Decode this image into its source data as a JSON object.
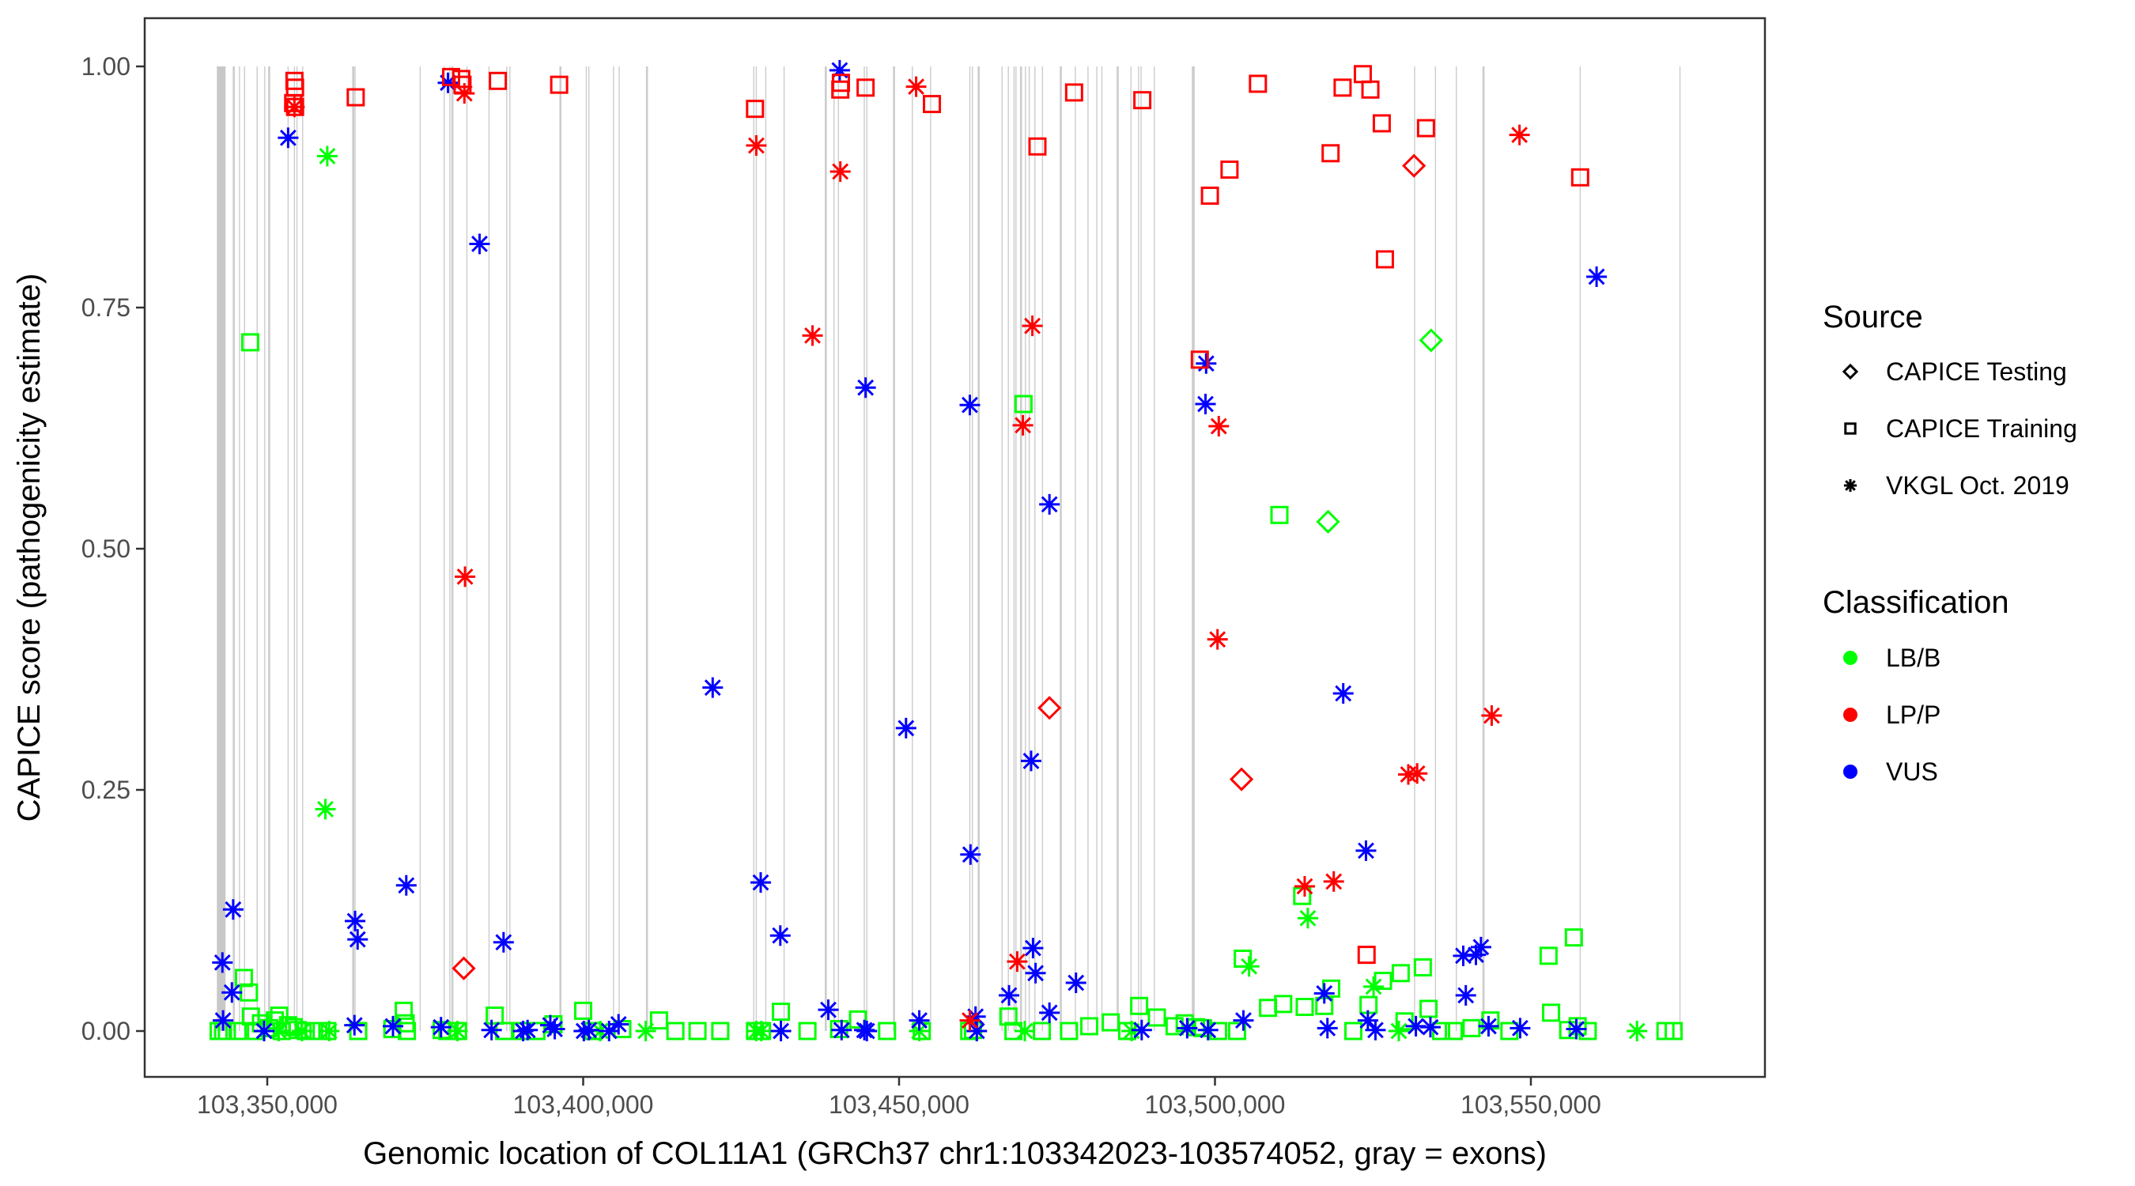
{
  "chart_data": {
    "type": "scatter",
    "title": "",
    "xlabel": "Genomic location of COL11A1 (GRCh37 chr1:103342023-103574052, gray = exons)",
    "ylabel": "CAPICE score (pathogenicity estimate)",
    "xlim": [
      103338500,
      103601500
    ],
    "ylim": [
      -0.048,
      1.048
    ],
    "xticks": [
      103350000,
      103400000,
      103450000,
      103500000,
      103550000
    ],
    "xtick_labels": [
      "103,350,000",
      "103,400,000",
      "103,450,000",
      "103,500,000",
      "103,550,000"
    ],
    "yticks": [
      0,
      0.25,
      0.5,
      0.75,
      1.0
    ],
    "ytick_labels": [
      "0.00",
      "0.25",
      "0.50",
      "0.75",
      "1.00"
    ],
    "grid": false,
    "legend_position": "right",
    "legend": {
      "source_title": "Source",
      "source_entries": [
        {
          "label": "CAPICE Testing",
          "shape": "diamond"
        },
        {
          "label": "CAPICE Training",
          "shape": "square"
        },
        {
          "label": "VKGL Oct. 2019",
          "shape": "asterisk"
        }
      ],
      "class_title": "Classification",
      "class_entries": [
        {
          "label": "LB/B",
          "color": "#00ff00"
        },
        {
          "label": "LP/P",
          "color": "#ff0000"
        },
        {
          "label": "VUS",
          "color": "#0000ff"
        }
      ]
    },
    "exon_bands": [
      [
        103342023,
        103343400
      ]
    ],
    "exons": [
      103344700,
      103345600,
      103346400,
      103348400,
      103349600,
      103350300,
      103353300,
      103354300,
      103354700,
      103355600,
      103363600,
      103363900,
      103374200,
      103378000,
      103378900,
      103379300,
      103381600,
      103385100,
      103387900,
      103388400,
      103396400,
      103400500,
      103400900,
      103404800,
      103405700,
      103410100,
      103427000,
      103427400,
      103428900,
      103431800,
      103438400,
      103439700,
      103440400,
      103444500,
      103444900,
      103449200,
      103452100,
      103455000,
      103461200,
      103461600,
      103462600,
      103466300,
      103467300,
      103468200,
      103468500,
      103469300,
      103470000,
      103470600,
      103471500,
      103472700,
      103475600,
      103477900,
      103479900,
      103481300,
      103482100,
      103484600,
      103486700,
      103487900,
      103488300,
      103490400,
      103496500,
      103496700,
      103531600,
      103534900,
      103538200,
      103542500,
      103557800,
      103573600
    ],
    "series": [
      {
        "name": "LP/P - CAPICE Training",
        "classification": "LP/P",
        "source": "CAPICE Training",
        "points": [
          [
            103354300,
            0.985
          ],
          [
            103354400,
            0.978
          ],
          [
            103354100,
            0.962
          ],
          [
            103354400,
            0.958
          ],
          [
            103364000,
            0.968
          ],
          [
            103379100,
            0.989
          ],
          [
            103380700,
            0.987
          ],
          [
            103380900,
            0.981
          ],
          [
            103386500,
            0.985
          ],
          [
            103396200,
            0.981
          ],
          [
            103427200,
            0.956
          ],
          [
            103440700,
            0.976
          ],
          [
            103440800,
            0.983
          ],
          [
            103444700,
            0.978
          ],
          [
            103455200,
            0.961
          ],
          [
            103471900,
            0.917
          ],
          [
            103477700,
            0.973
          ],
          [
            103488500,
            0.965
          ],
          [
            103497600,
            0.696
          ],
          [
            103499200,
            0.866
          ],
          [
            103502300,
            0.893
          ],
          [
            103506800,
            0.982
          ],
          [
            103518300,
            0.91
          ],
          [
            103520200,
            0.978
          ],
          [
            103523400,
            0.992
          ],
          [
            103524600,
            0.976
          ],
          [
            103526400,
            0.941
          ],
          [
            103526900,
            0.8
          ],
          [
            103533400,
            0.936
          ],
          [
            103557800,
            0.885
          ],
          [
            103524000,
            0.079
          ]
        ]
      },
      {
        "name": "LP/P - VKGL Oct. 2019",
        "classification": "LP/P",
        "source": "VKGL Oct. 2019",
        "points": [
          [
            103354300,
            0.958
          ],
          [
            103381200,
            0.972
          ],
          [
            103381300,
            0.471
          ],
          [
            103427400,
            0.918
          ],
          [
            103436300,
            0.721
          ],
          [
            103440700,
            0.891
          ],
          [
            103452700,
            0.979
          ],
          [
            103461200,
            0.011
          ],
          [
            103469600,
            0.628
          ],
          [
            103471100,
            0.731
          ],
          [
            103500600,
            0.627
          ],
          [
            103500400,
            0.406
          ],
          [
            103468700,
            0.072
          ],
          [
            103514200,
            0.15
          ],
          [
            103518800,
            0.155
          ],
          [
            103530600,
            0.266
          ],
          [
            103532000,
            0.267
          ],
          [
            103543800,
            0.327
          ],
          [
            103548200,
            0.929
          ]
        ]
      },
      {
        "name": "LP/P - CAPICE Testing",
        "classification": "LP/P",
        "source": "CAPICE Testing",
        "points": [
          [
            103381100,
            0.065
          ],
          [
            103473800,
            0.335
          ],
          [
            103504200,
            0.261
          ],
          [
            103531500,
            0.897
          ]
        ]
      },
      {
        "name": "VUS - VKGL Oct. 2019",
        "classification": "VUS",
        "source": "VKGL Oct. 2019",
        "points": [
          [
            103342900,
            0.071
          ],
          [
            103343000,
            0.011
          ],
          [
            103344600,
            0.126
          ],
          [
            103344400,
            0.04
          ],
          [
            103349500,
            0.0
          ],
          [
            103353300,
            0.926
          ],
          [
            103363900,
            0.114
          ],
          [
            103364300,
            0.095
          ],
          [
            103363800,
            0.006
          ],
          [
            103369900,
            0.005
          ],
          [
            103372000,
            0.151
          ],
          [
            103378600,
            0.983
          ],
          [
            103377500,
            0.004
          ],
          [
            103383600,
            0.816
          ],
          [
            103387400,
            0.092
          ],
          [
            103385500,
            0.001
          ],
          [
            103390500,
            0.0
          ],
          [
            103391200,
            0.001
          ],
          [
            103394800,
            0.006
          ],
          [
            103395500,
            0.002
          ],
          [
            103400100,
            0.0
          ],
          [
            103400900,
            0.001
          ],
          [
            103404100,
            0.0
          ],
          [
            103405600,
            0.007
          ],
          [
            103420500,
            0.356
          ],
          [
            103428100,
            0.154
          ],
          [
            103431200,
            0.099
          ],
          [
            103431300,
            0.0
          ],
          [
            103438800,
            0.022
          ],
          [
            103440600,
            0.996
          ],
          [
            103440900,
            0.001
          ],
          [
            103444700,
            0.667
          ],
          [
            103444500,
            0.001
          ],
          [
            103444900,
            0.0
          ],
          [
            103451100,
            0.314
          ],
          [
            103453200,
            0.011
          ],
          [
            103461200,
            0.649
          ],
          [
            103461300,
            0.183
          ],
          [
            103462100,
            0.015
          ],
          [
            103462300,
            0.0
          ],
          [
            103467400,
            0.037
          ],
          [
            103470900,
            0.28
          ],
          [
            103471200,
            0.086
          ],
          [
            103471600,
            0.06
          ],
          [
            103473800,
            0.546
          ],
          [
            103473800,
            0.019
          ],
          [
            103478000,
            0.05
          ],
          [
            103488400,
            0.001
          ],
          [
            103498600,
            0.692
          ],
          [
            103498500,
            0.65
          ],
          [
            103495600,
            0.003
          ],
          [
            103498900,
            0.001
          ],
          [
            103504500,
            0.011
          ],
          [
            103517300,
            0.039
          ],
          [
            103517800,
            0.003
          ],
          [
            103520300,
            0.35
          ],
          [
            103523900,
            0.187
          ],
          [
            103524200,
            0.011
          ],
          [
            103525400,
            0.001
          ],
          [
            103531800,
            0.005
          ],
          [
            103534100,
            0.004
          ],
          [
            103539300,
            0.078
          ],
          [
            103539700,
            0.037
          ],
          [
            103541300,
            0.079
          ],
          [
            103542100,
            0.087
          ],
          [
            103543300,
            0.005
          ],
          [
            103548300,
            0.003
          ],
          [
            103557200,
            0.002
          ],
          [
            103560400,
            0.782
          ]
        ]
      },
      {
        "name": "LB/B - CAPICE Training",
        "classification": "LB/B",
        "source": "CAPICE Training",
        "points": [
          [
            103342300,
            0.0
          ],
          [
            103343000,
            0.0
          ],
          [
            103343600,
            0.0
          ],
          [
            103345300,
            0.0
          ],
          [
            103346300,
            0.055
          ],
          [
            103347100,
            0.04
          ],
          [
            103347300,
            0.714
          ],
          [
            103347400,
            0.015
          ],
          [
            103348200,
            0.0
          ],
          [
            103349000,
            0.008
          ],
          [
            103350300,
            0.003
          ],
          [
            103351200,
            0.011
          ],
          [
            103351900,
            0.016
          ],
          [
            103352300,
            0.0
          ],
          [
            103353300,
            0.006
          ],
          [
            103354200,
            0.004
          ],
          [
            103354800,
            0.001
          ],
          [
            103356100,
            0.0
          ],
          [
            103357400,
            0.0
          ],
          [
            103358100,
            0.0
          ],
          [
            103359500,
            0.0
          ],
          [
            103364400,
            0.0
          ],
          [
            103369800,
            0.002
          ],
          [
            103371600,
            0.021
          ],
          [
            103371900,
            0.008
          ],
          [
            103372100,
            0.0
          ],
          [
            103377600,
            0.001
          ],
          [
            103378500,
            0.0
          ],
          [
            103380200,
            0.0
          ],
          [
            103386000,
            0.016
          ],
          [
            103387500,
            0.0
          ],
          [
            103390200,
            0.0
          ],
          [
            103392600,
            0.0
          ],
          [
            103395300,
            0.007
          ],
          [
            103400000,
            0.021
          ],
          [
            103401600,
            0.0
          ],
          [
            103406200,
            0.002
          ],
          [
            103412000,
            0.011
          ],
          [
            103414600,
            0.0
          ],
          [
            103418100,
            0.0
          ],
          [
            103421700,
            0.0
          ],
          [
            103427200,
            0.0
          ],
          [
            103428300,
            0.0
          ],
          [
            103431300,
            0.02
          ],
          [
            103435500,
            0.0
          ],
          [
            103440500,
            0.002
          ],
          [
            103443500,
            0.012
          ],
          [
            103448100,
            0.0
          ],
          [
            103453600,
            0.0
          ],
          [
            103461100,
            0.0
          ],
          [
            103461700,
            0.001
          ],
          [
            103467300,
            0.015
          ],
          [
            103468100,
            0.0
          ],
          [
            103469700,
            0.65
          ],
          [
            103472600,
            0.0
          ],
          [
            103476900,
            0.0
          ],
          [
            103480100,
            0.005
          ],
          [
            103483500,
            0.009
          ],
          [
            103486100,
            0.0
          ],
          [
            103488000,
            0.026
          ],
          [
            103490800,
            0.014
          ],
          [
            103493600,
            0.005
          ],
          [
            103495200,
            0.008
          ],
          [
            103497000,
            0.004
          ],
          [
            103498100,
            0.003
          ],
          [
            103500500,
            0.0
          ],
          [
            103503500,
            0.0
          ],
          [
            103504400,
            0.075
          ],
          [
            103508400,
            0.024
          ],
          [
            103510200,
            0.535
          ],
          [
            103510800,
            0.028
          ],
          [
            103513800,
            0.14
          ],
          [
            103514200,
            0.025
          ],
          [
            103517300,
            0.026
          ],
          [
            103518400,
            0.044
          ],
          [
            103521900,
            0.0
          ],
          [
            103524300,
            0.027
          ],
          [
            103526600,
            0.052
          ],
          [
            103529400,
            0.06
          ],
          [
            103530000,
            0.01
          ],
          [
            103532900,
            0.066
          ],
          [
            103533800,
            0.023
          ],
          [
            103535800,
            0.0
          ],
          [
            103537800,
            0.0
          ],
          [
            103540600,
            0.003
          ],
          [
            103543600,
            0.011
          ],
          [
            103546600,
            0.0
          ],
          [
            103552800,
            0.078
          ],
          [
            103553200,
            0.019
          ],
          [
            103555900,
            0.001
          ],
          [
            103556800,
            0.097
          ],
          [
            103557400,
            0.005
          ],
          [
            103559000,
            0.0
          ],
          [
            103571300,
            0.0
          ],
          [
            103572600,
            0.0
          ]
        ]
      },
      {
        "name": "LB/B - VKGL Oct. 2019",
        "classification": "LB/B",
        "source": "VKGL Oct. 2019",
        "points": [
          [
            103351800,
            0.0
          ],
          [
            103355500,
            0.0
          ],
          [
            103359500,
            0.907
          ],
          [
            103359200,
            0.23
          ],
          [
            103359800,
            0.0
          ],
          [
            103380100,
            0.0
          ],
          [
            103402700,
            0.0
          ],
          [
            103409900,
            0.0
          ],
          [
            103427400,
            0.0
          ],
          [
            103428200,
            0.0
          ],
          [
            103453200,
            0.0
          ],
          [
            103469900,
            0.0
          ],
          [
            103486800,
            0.0
          ],
          [
            103505400,
            0.067
          ],
          [
            103514700,
            0.117
          ],
          [
            103525100,
            0.046
          ],
          [
            103529100,
            0.0
          ],
          [
            103566800,
            0.0
          ]
        ]
      },
      {
        "name": "LB/B - CAPICE Testing",
        "classification": "LB/B",
        "source": "CAPICE Testing",
        "points": [
          [
            103517900,
            0.528
          ],
          [
            103534200,
            0.716
          ]
        ]
      }
    ]
  }
}
